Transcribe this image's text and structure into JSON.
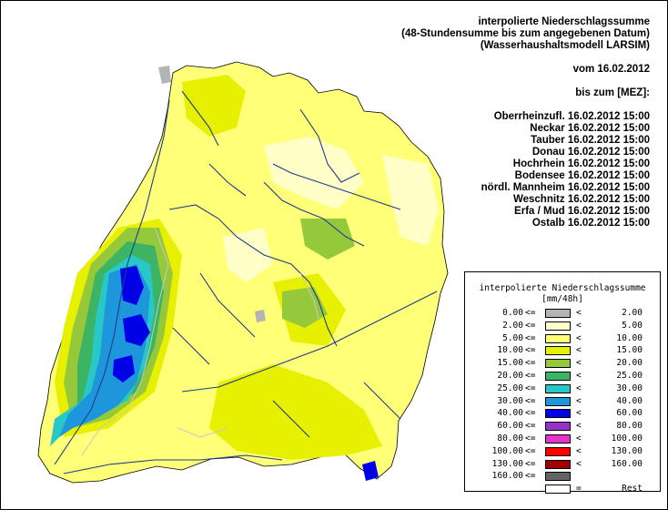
{
  "header": {
    "title_lines": [
      "interpolierte Niederschlagssumme",
      "(48-Stundensumme bis zum angegebenen Datum)",
      "(Wasserhaushaltsmodell LARSIM)"
    ],
    "date_line": "vom 16.02.2012",
    "until_line": "bis zum [MEZ]:"
  },
  "regions": [
    {
      "name": "Oberrheinzufl.",
      "time": "16.02.2012 15:00"
    },
    {
      "name": "Neckar",
      "time": "16.02.2012 15:00"
    },
    {
      "name": "Tauber",
      "time": "16.02.2012 15:00"
    },
    {
      "name": "Donau",
      "time": "16.02.2012 15:00"
    },
    {
      "name": "Hochrhein",
      "time": "16.02.2012 15:00"
    },
    {
      "name": "Bodensee",
      "time": "16.02.2012 15:00"
    },
    {
      "name": "nördl. Mannheim",
      "time": "16.02.2012 15:00"
    },
    {
      "name": "Weschnitz",
      "time": "16.02.2012 15:00"
    },
    {
      "name": "Erfa / Mud",
      "time": "16.02.2012 15:00"
    },
    {
      "name": "Ostalb",
      "time": "16.02.2012 15:00"
    }
  ],
  "legend": {
    "title": "interpolierte Niederschlagssumme",
    "unit": "[mm/48h]",
    "op_low": "<=",
    "op_high": "<",
    "rest_op": "=",
    "rest_label": "Rest",
    "classes": [
      {
        "low": "0.00",
        "high": "2.00",
        "color": "#b4b4b4"
      },
      {
        "low": "2.00",
        "high": "5.00",
        "color": "#ffffc8"
      },
      {
        "low": "5.00",
        "high": "10.00",
        "color": "#ffff78"
      },
      {
        "low": "10.00",
        "high": "15.00",
        "color": "#e6f000"
      },
      {
        "low": "15.00",
        "high": "20.00",
        "color": "#96c83c"
      },
      {
        "low": "20.00",
        "high": "25.00",
        "color": "#3cb464"
      },
      {
        "low": "25.00",
        "high": "30.00",
        "color": "#28c8c8"
      },
      {
        "low": "30.00",
        "high": "40.00",
        "color": "#1e96dc"
      },
      {
        "low": "40.00",
        "high": "60.00",
        "color": "#0000e6"
      },
      {
        "low": "60.00",
        "high": "80.00",
        "color": "#9632c8"
      },
      {
        "low": "80.00",
        "high": "100.00",
        "color": "#e632c8"
      },
      {
        "low": "100.00",
        "high": "130.00",
        "color": "#ff0000"
      },
      {
        "low": "130.00",
        "high": "160.00",
        "color": "#a00000"
      },
      {
        "low": "160.00",
        "high": "",
        "color": "#646464"
      }
    ],
    "rest_color": "#ffffff"
  },
  "map": {
    "river_color": "#1e3c8c",
    "boundary_color": "#c8c8c8"
  }
}
